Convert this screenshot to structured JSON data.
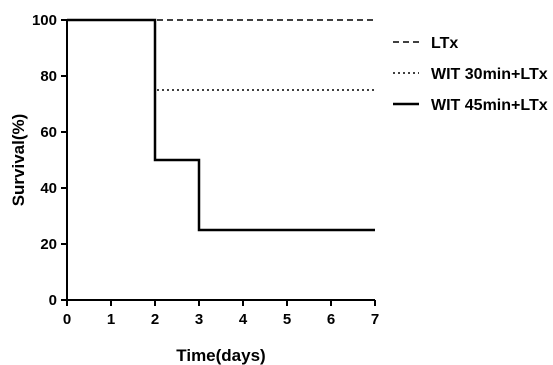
{
  "chart_data": {
    "type": "line",
    "title": "",
    "xlabel": "Time(days)",
    "ylabel": "Survival(%)",
    "xlim": [
      0,
      7
    ],
    "ylim": [
      0,
      100
    ],
    "x_ticks": [
      0,
      1,
      2,
      3,
      4,
      5,
      6,
      7
    ],
    "y_ticks": [
      0,
      20,
      40,
      60,
      80,
      100
    ],
    "grid": false,
    "legend_position": "top-right",
    "step": true,
    "series": [
      {
        "name": "LTx",
        "style": "dashed",
        "color": "#000000",
        "x": [
          0,
          7
        ],
        "y": [
          100,
          100
        ]
      },
      {
        "name": "WIT 30min+LTx",
        "style": "dotted",
        "color": "#000000",
        "x": [
          0,
          2,
          7
        ],
        "y": [
          100,
          75,
          75
        ]
      },
      {
        "name": "WIT 45min+LTx",
        "style": "solid",
        "color": "#000000",
        "x": [
          0,
          2,
          3,
          7
        ],
        "y": [
          100,
          50,
          25,
          25
        ]
      }
    ]
  }
}
